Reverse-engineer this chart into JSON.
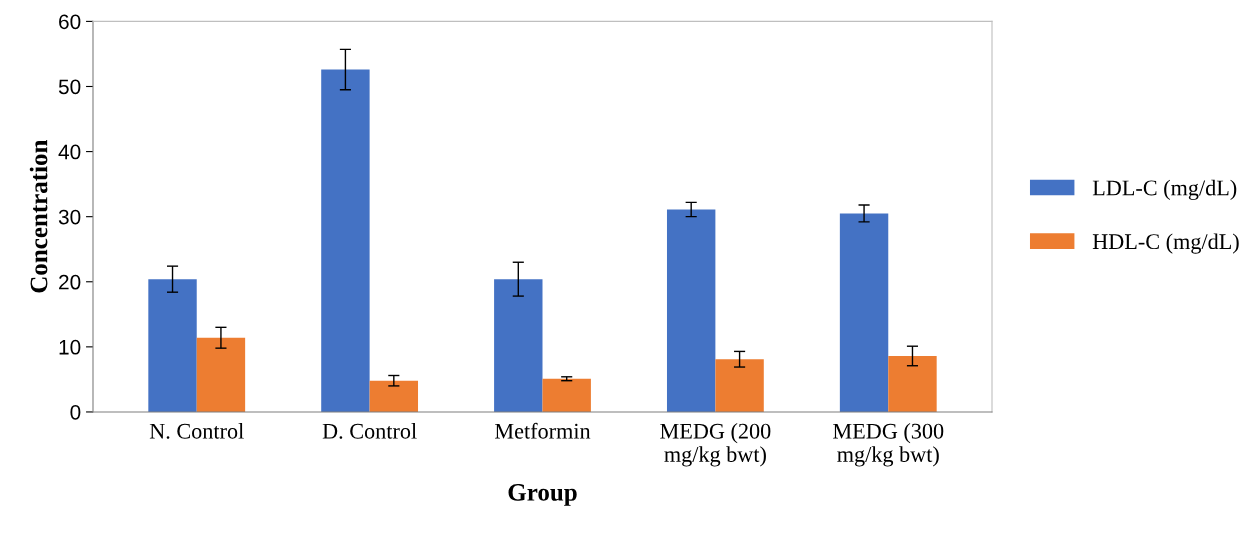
{
  "chart_data": {
    "type": "bar",
    "xlabel": "Group",
    "ylabel": "Concentration",
    "categories": [
      "N. Control",
      "D. Control",
      "Metformin",
      "MEDG (200\nmg/kg bwt)",
      "MEDG (300\nmg/kg bwt)"
    ],
    "series": [
      {
        "name": "LDL-C (mg/dL)",
        "color": "#4472c4",
        "values": [
          20.4,
          52.6,
          20.4,
          31.1,
          30.5
        ],
        "errors": [
          2.0,
          3.1,
          2.6,
          1.1,
          1.3
        ]
      },
      {
        "name": "HDL-C (mg/dL)",
        "color": "#ed7d31",
        "values": [
          11.4,
          4.8,
          5.1,
          8.1,
          8.6
        ],
        "errors": [
          1.6,
          0.8,
          0.3,
          1.2,
          1.5
        ]
      }
    ],
    "ylim": [
      0,
      60
    ],
    "yticks": [
      0,
      10,
      20,
      30,
      40,
      50,
      60
    ],
    "grid": false,
    "legend": "right"
  }
}
